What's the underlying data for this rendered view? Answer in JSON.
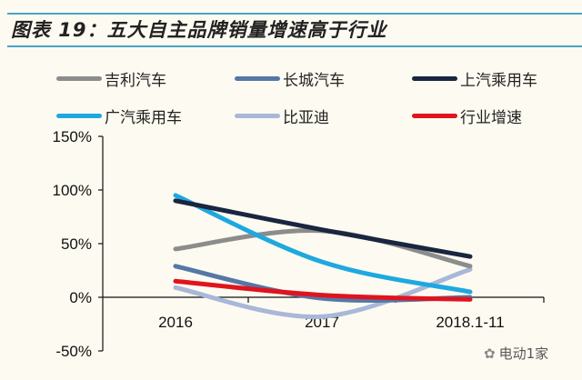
{
  "chart_data": {
    "type": "line",
    "title": "图表 19：五大自主品牌销量增速高于行业",
    "categories": [
      "2016",
      "2017",
      "2018.1-11"
    ],
    "ylim": [
      -50,
      150
    ],
    "yticks": [
      -50,
      0,
      50,
      100,
      150
    ],
    "ytick_labels": [
      "-50%",
      "0%",
      "50%",
      "100%",
      "150%"
    ],
    "xlabel": "",
    "ylabel": "",
    "legend_position": "top",
    "series": [
      {
        "name": "吉利汽车",
        "color": "#8c8c8c",
        "values": [
          45,
          62,
          29
        ]
      },
      {
        "name": "长城汽车",
        "color": "#5577a8",
        "values": [
          29,
          -1,
          0
        ]
      },
      {
        "name": "上汽乘用车",
        "color": "#1a2540",
        "values": [
          90,
          63,
          38
        ]
      },
      {
        "name": "广汽乘用车",
        "color": "#1fa8e0",
        "values": [
          95,
          33,
          5
        ]
      },
      {
        "name": "比亚迪",
        "color": "#a9b8d8",
        "values": [
          9,
          -18,
          26
        ]
      },
      {
        "name": "行业增速",
        "color": "#e0141e",
        "values": [
          15,
          2,
          -2
        ]
      }
    ]
  },
  "watermark": "电动1家"
}
